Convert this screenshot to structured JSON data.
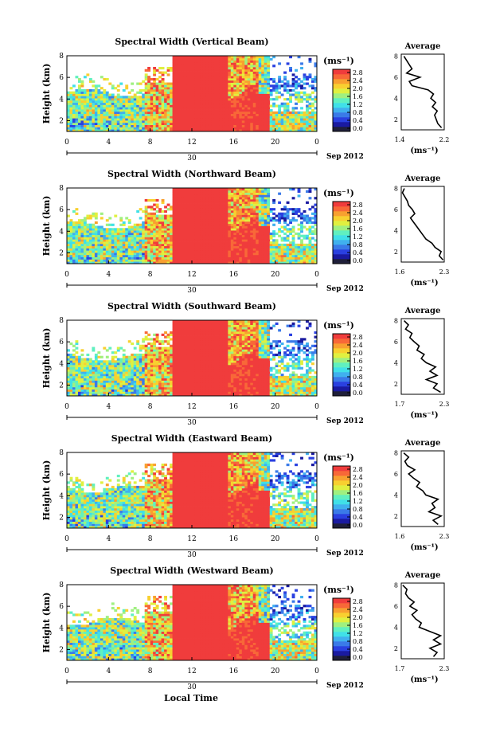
{
  "common": {
    "ylabel": "Height (km)",
    "unit_label": "(ms⁻¹)",
    "date_label": "Sep 2012",
    "xticks": [
      "0",
      "4",
      "8",
      "12",
      "16",
      "20",
      "0"
    ],
    "day_label": "30",
    "yticks": [
      "2",
      "4",
      "6",
      "8"
    ],
    "avg_title": "Average",
    "avg_unit": "(ms⁻¹)",
    "colorbar_ticks": [
      "0.0",
      "0.4",
      "0.8",
      "1.2",
      "1.6",
      "2.0",
      "2.4",
      "2.8"
    ],
    "xlabel": "Local Time"
  },
  "colorbar_colors": [
    "#1f1f3a",
    "#1a1aa0",
    "#2a40e0",
    "#3a7ae8",
    "#40b0ee",
    "#40e0e8",
    "#60f0c0",
    "#a0f080",
    "#e0f040",
    "#f8d030",
    "#f8a030",
    "#f86838",
    "#f03c3c"
  ],
  "chart_data": [
    {
      "type": "heatmap",
      "title": "Spectral Width (Vertical Beam)",
      "xlabel": "",
      "ylabel": "Height (km)",
      "x_range": [
        0,
        24
      ],
      "y_range": [
        1,
        8
      ],
      "value_range": [
        0.0,
        2.8
      ],
      "average_profile": {
        "xlim": [
          1.4,
          2.2
        ],
        "xticks": [
          "1.4",
          "2.2"
        ],
        "height": [
          1.2,
          1.6,
          2.0,
          2.4,
          2.8,
          3.2,
          3.6,
          4.0,
          4.4,
          4.8,
          5.2,
          5.6,
          6.0,
          6.4,
          6.8,
          7.2,
          7.6,
          8.0
        ],
        "value": [
          2.15,
          2.08,
          2.05,
          2.02,
          2.07,
          1.98,
          2.04,
          1.95,
          2.0,
          1.9,
          1.6,
          1.55,
          1.75,
          1.5,
          1.6,
          1.55,
          1.5,
          1.45
        ]
      }
    },
    {
      "type": "heatmap",
      "title": "Spectral Width (Northward Beam)",
      "xlabel": "",
      "ylabel": "Height (km)",
      "x_range": [
        0,
        24
      ],
      "y_range": [
        1,
        8
      ],
      "value_range": [
        0.0,
        2.8
      ],
      "average_profile": {
        "xlim": [
          1.6,
          2.3
        ],
        "xticks": [
          "1.6",
          "2.3"
        ],
        "height": [
          1.2,
          1.6,
          2.0,
          2.4,
          2.8,
          3.2,
          3.6,
          4.0,
          4.4,
          4.8,
          5.2,
          5.6,
          6.0,
          6.4,
          6.8,
          7.2,
          7.6,
          8.0
        ],
        "value": [
          2.28,
          2.22,
          2.25,
          2.15,
          2.1,
          2.0,
          1.95,
          1.9,
          1.85,
          1.8,
          1.75,
          1.82,
          1.78,
          1.72,
          1.7,
          1.66,
          1.62,
          1.65
        ]
      }
    },
    {
      "type": "heatmap",
      "title": "Spectral Width (Southward Beam)",
      "xlabel": "",
      "ylabel": "Height (km)",
      "x_range": [
        0,
        24
      ],
      "y_range": [
        1,
        8
      ],
      "value_range": [
        0.0,
        2.8
      ],
      "average_profile": {
        "xlim": [
          1.7,
          2.3
        ],
        "xticks": [
          "1.7",
          "2.3"
        ],
        "height": [
          1.2,
          1.6,
          2.0,
          2.4,
          2.8,
          3.2,
          3.6,
          4.0,
          4.4,
          4.8,
          5.2,
          5.6,
          6.0,
          6.4,
          6.8,
          7.2,
          7.6,
          8.0
        ],
        "value": [
          2.25,
          2.15,
          2.2,
          2.05,
          2.2,
          2.1,
          2.18,
          2.05,
          1.98,
          2.02,
          1.92,
          1.95,
          1.88,
          1.82,
          1.85,
          1.76,
          1.8,
          1.74
        ]
      }
    },
    {
      "type": "heatmap",
      "title": "Spectral Width (Eastward Beam)",
      "xlabel": "",
      "ylabel": "Height (km)",
      "x_range": [
        0,
        24
      ],
      "y_range": [
        1,
        8
      ],
      "value_range": [
        0.0,
        2.8
      ],
      "average_profile": {
        "xlim": [
          1.6,
          2.3
        ],
        "xticks": [
          "1.6",
          "2.3"
        ],
        "height": [
          1.2,
          1.6,
          2.0,
          2.4,
          2.8,
          3.2,
          3.6,
          4.0,
          4.4,
          4.8,
          5.2,
          5.6,
          6.0,
          6.4,
          6.8,
          7.2,
          7.6,
          8.0
        ],
        "value": [
          2.2,
          2.12,
          2.25,
          2.05,
          2.15,
          2.1,
          2.2,
          2.0,
          1.95,
          1.85,
          1.9,
          1.8,
          1.72,
          1.82,
          1.7,
          1.66,
          1.72,
          1.64
        ]
      }
    },
    {
      "type": "heatmap",
      "title": "Spectral Width (Westward Beam)",
      "xlabel": "Local Time",
      "ylabel": "Height (km)",
      "x_range": [
        0,
        24
      ],
      "y_range": [
        1,
        8
      ],
      "value_range": [
        0.0,
        2.8
      ],
      "average_profile": {
        "xlim": [
          1.7,
          2.3
        ],
        "xticks": [
          "1.7",
          "2.3"
        ],
        "height": [
          1.2,
          1.6,
          2.0,
          2.4,
          2.8,
          3.2,
          3.6,
          4.0,
          4.4,
          4.8,
          5.2,
          5.6,
          6.0,
          6.4,
          6.8,
          7.2,
          7.6,
          8.0
        ],
        "value": [
          2.15,
          2.2,
          2.1,
          2.25,
          2.15,
          2.25,
          2.1,
          1.95,
          1.98,
          1.9,
          1.85,
          1.92,
          1.82,
          1.88,
          1.8,
          1.76,
          1.78,
          1.72
        ]
      }
    }
  ]
}
